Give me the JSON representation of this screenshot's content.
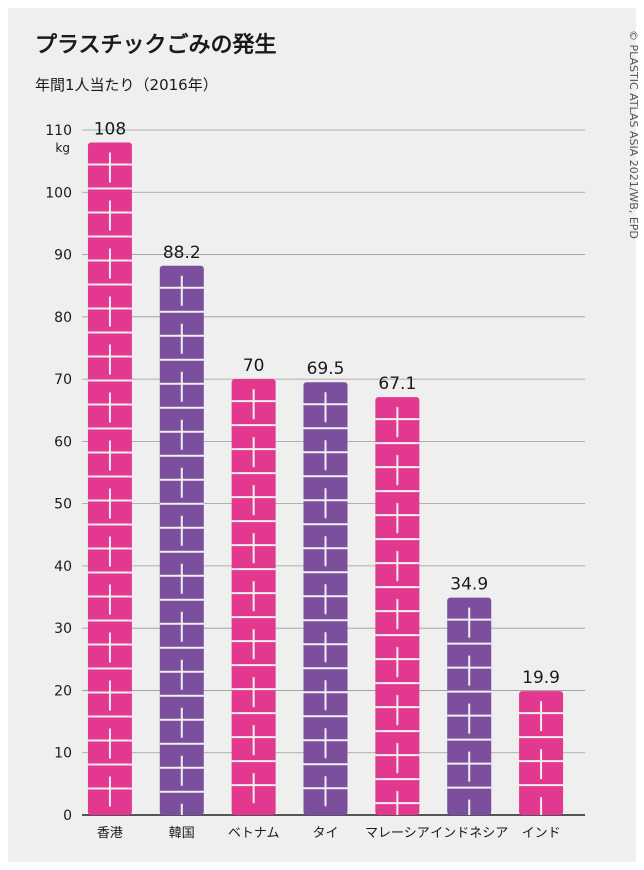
{
  "chart_data": {
    "type": "bar",
    "title": "プラスチックごみの発生",
    "subtitle": "年間1人当たり（2016年）",
    "y_unit": "kg",
    "credit": "© PLASTIC ATLAS ASIA 2021/WB, EPD",
    "categories": [
      "香港",
      "韓国",
      "ベトナム",
      "タイ",
      "マレーシア",
      "インドネシア",
      "インド"
    ],
    "values": [
      108,
      88.2,
      70,
      69.5,
      67.1,
      34.9,
      19.9
    ],
    "colors": [
      "#e2388f",
      "#7c4f9e",
      "#e2388f",
      "#7c4f9e",
      "#e2388f",
      "#7c4f9e",
      "#e2388f"
    ],
    "ylim": [
      0,
      110
    ],
    "yticks": [
      0,
      10,
      20,
      30,
      40,
      50,
      60,
      70,
      80,
      90,
      100,
      110
    ],
    "grid": true
  }
}
